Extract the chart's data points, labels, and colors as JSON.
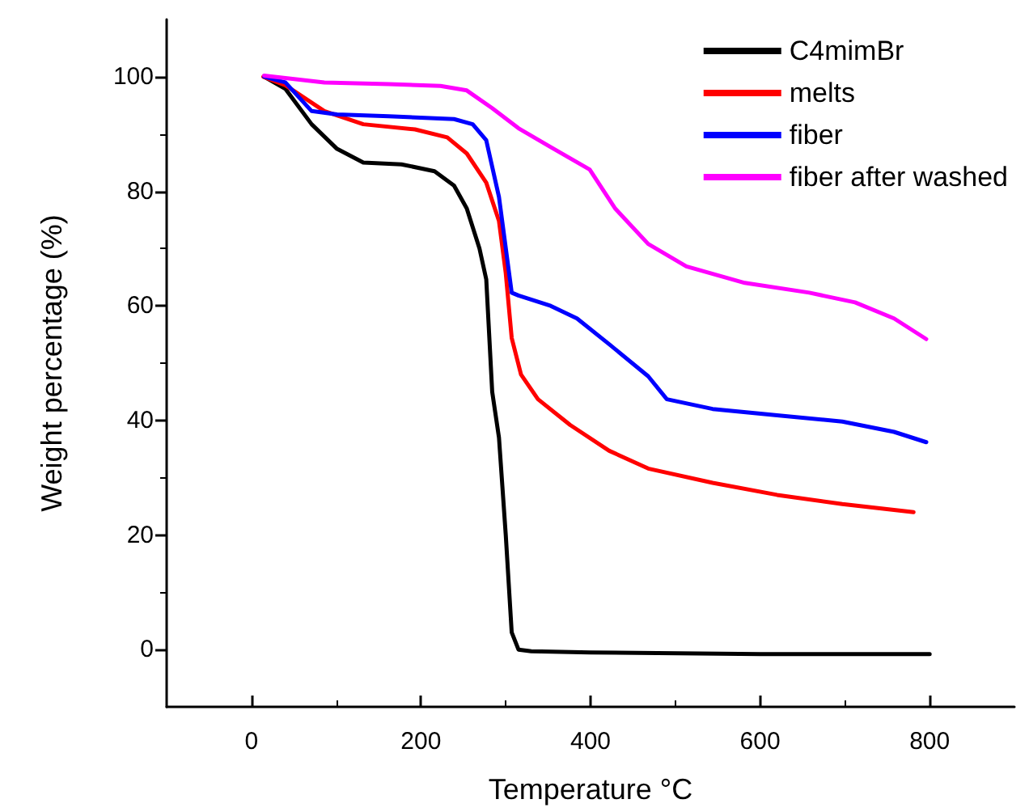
{
  "chart_data": {
    "type": "line",
    "xlabel": "Temperature °C",
    "ylabel": "Weight percentage (%)",
    "xlim": [
      -100,
      900
    ],
    "xticks": [
      0,
      200,
      400,
      600,
      800
    ],
    "ylim": [
      -10,
      110
    ],
    "yticks": [
      0,
      20,
      40,
      60,
      80,
      100
    ],
    "grid": false,
    "legend": "top right",
    "marker": "none",
    "line_style": "solid",
    "series": [
      {
        "name": "C4mimBr",
        "color": "#000000",
        "x": [
          15,
          40,
          71,
          101,
          132,
          177,
          216,
          239,
          254,
          269,
          277,
          284,
          292,
          300,
          307,
          315,
          330,
          400,
          600,
          800
        ],
        "values": [
          100,
          97.9,
          91.7,
          87.4,
          85,
          84.7,
          83.5,
          81,
          77,
          70,
          64.6,
          45,
          37,
          20,
          3,
          0,
          -0.3,
          -0.5,
          -0.8,
          -0.8
        ]
      },
      {
        "name": "melts",
        "color": "#ff0000",
        "x": [
          14,
          40,
          86,
          132,
          193,
          231,
          254,
          277,
          292,
          300,
          307,
          318,
          338,
          376,
          422,
          468,
          544,
          620,
          697,
          781
        ],
        "values": [
          100,
          98.5,
          94,
          91.7,
          90.8,
          89.4,
          86.6,
          81.5,
          74.8,
          65.7,
          54.4,
          48,
          43.7,
          39.2,
          34.7,
          31.6,
          29.1,
          27,
          25.4,
          24
        ]
      },
      {
        "name": "fiber",
        "color": "#0000ff",
        "x": [
          15,
          40,
          71,
          101,
          162,
          239,
          261,
          277,
          292,
          307,
          315,
          353,
          384,
          422,
          468,
          490,
          544,
          620,
          697,
          758,
          796
        ],
        "values": [
          100,
          99,
          94,
          93.4,
          93.1,
          92.6,
          91.7,
          88.9,
          79,
          62.3,
          61.8,
          60,
          57.8,
          53.3,
          47.7,
          43.7,
          42,
          40.9,
          39.8,
          38,
          36.2
        ]
      },
      {
        "name": "fiber after washed",
        "color": "#ff00ff",
        "x": [
          15,
          86,
          162,
          223,
          254,
          284,
          315,
          353,
          399,
          429,
          468,
          513,
          582,
          658,
          712,
          758,
          796
        ],
        "values": [
          100.2,
          99,
          98.7,
          98.4,
          97.6,
          94.5,
          91,
          87.7,
          83.8,
          77,
          70.8,
          66.9,
          64,
          62.3,
          60.6,
          57.8,
          54.2
        ]
      }
    ]
  }
}
